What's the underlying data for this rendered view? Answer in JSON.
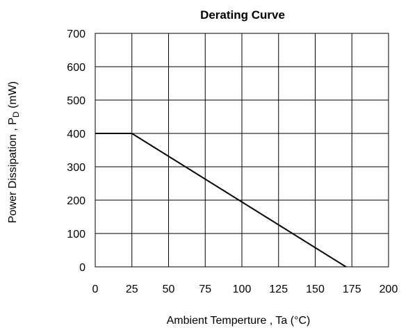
{
  "chart_data": {
    "type": "line",
    "title": "Derating Curve",
    "xlabel": "Ambient Temperture , Ta (°C)",
    "ylabel": {
      "main": "Power Dissipation , P",
      "sub": "D",
      "unit": " (mW)"
    },
    "xlim": [
      0,
      200
    ],
    "ylim": [
      0,
      700
    ],
    "x_ticks": [
      0,
      25,
      50,
      75,
      100,
      125,
      150,
      175,
      200
    ],
    "y_ticks": [
      0,
      100,
      200,
      300,
      400,
      500,
      600,
      700
    ],
    "grid": true,
    "series": [
      {
        "x": [
          0,
          25,
          171
        ],
        "y": [
          400,
          400,
          0
        ]
      }
    ]
  }
}
